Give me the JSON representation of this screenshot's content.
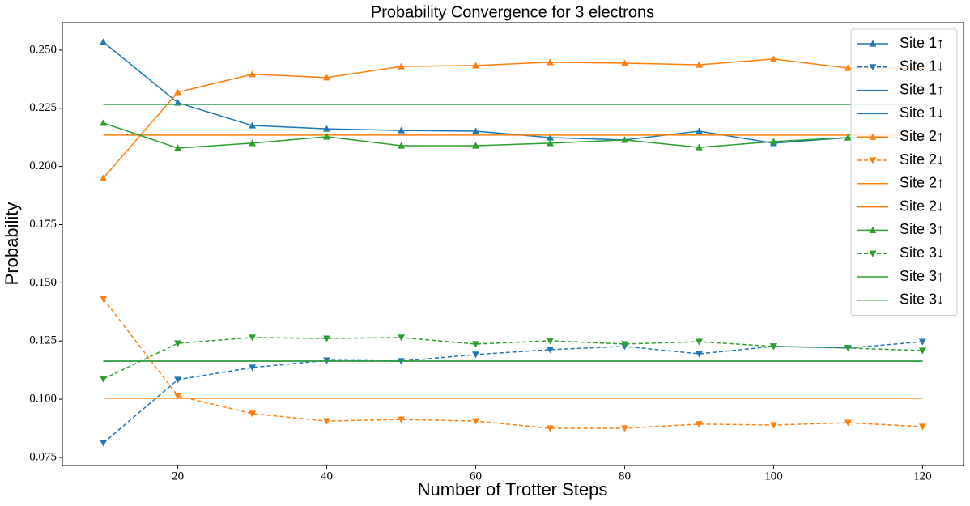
{
  "chart_data": {
    "type": "line",
    "title": "Probability Convergence for 3 electrons",
    "xlabel": "Number of Trotter Steps",
    "ylabel": "Probability",
    "x": [
      10,
      20,
      30,
      40,
      50,
      60,
      70,
      80,
      90,
      100,
      110,
      120
    ],
    "xlim": [
      4.5,
      125.5
    ],
    "ylim": [
      0.0715,
      0.2618
    ],
    "xticks": [
      20,
      40,
      60,
      80,
      100,
      120
    ],
    "yticks": [
      0.075,
      {
        "value": 0.1,
        "label": "0.100"
      },
      0.125,
      {
        "value": 0.15,
        "label": "0.150"
      },
      0.175,
      {
        "value": 0.2,
        "label": "0.200"
      },
      0.225,
      {
        "value": 0.25,
        "label": "0.250"
      }
    ],
    "legend": "upper right",
    "series": [
      {
        "name": "Site 1↑",
        "color": "#1f77b4",
        "marker": "^",
        "linestyle": "solid",
        "values": [
          0.2535,
          0.2274,
          0.2176,
          0.2162,
          0.2155,
          0.2152,
          0.2124,
          0.2114,
          0.2152,
          0.21,
          0.2124,
          0.2124
        ]
      },
      {
        "name": "Site 1↓",
        "color": "#1f77b4",
        "marker": "v",
        "linestyle": "dashed",
        "values": [
          0.0812,
          0.1084,
          0.1136,
          0.1167,
          0.1164,
          0.1192,
          0.1213,
          0.1227,
          0.1195,
          0.1227,
          0.122,
          0.1247
        ]
      },
      {
        "name": "Site 1↑",
        "color": "#1f77b4",
        "linestyle": "solid",
        "value": 0.2267
      },
      {
        "name": "Site 1↓",
        "color": "#1f77b4",
        "linestyle": "solid",
        "value": 0.1164
      },
      {
        "name": "Site 2↑",
        "color": "#ff7f0e",
        "marker": "^",
        "linestyle": "solid",
        "values": [
          0.195,
          0.2319,
          0.2396,
          0.2382,
          0.243,
          0.2434,
          0.2448,
          0.2444,
          0.2437,
          0.2462,
          0.2423,
          0.2423
        ]
      },
      {
        "name": "Site 2↓",
        "color": "#ff7f0e",
        "marker": "v",
        "linestyle": "dashed",
        "values": [
          0.1432,
          0.1014,
          0.0938,
          0.0906,
          0.0913,
          0.0906,
          0.0875,
          0.0875,
          0.0893,
          0.0889,
          0.0899,
          0.0882
        ]
      },
      {
        "name": "Site 2↑",
        "color": "#ff7f0e",
        "linestyle": "solid",
        "value": 0.2135
      },
      {
        "name": "Site 2↓",
        "color": "#ff7f0e",
        "linestyle": "solid",
        "value": 0.1004
      },
      {
        "name": "Site 3↑",
        "color": "#2ca02c",
        "marker": "^",
        "linestyle": "solid",
        "values": [
          0.2187,
          0.2079,
          0.21,
          0.2128,
          0.2089,
          0.2089,
          0.21,
          0.2114,
          0.2082,
          0.2107,
          0.2124,
          0.2124
        ]
      },
      {
        "name": "Site 3↓",
        "color": "#2ca02c",
        "marker": "v",
        "linestyle": "dashed",
        "values": [
          0.1087,
          0.124,
          0.1265,
          0.1261,
          0.1265,
          0.1237,
          0.1251,
          0.1237,
          0.1247,
          0.1227,
          0.122,
          0.1209
        ]
      },
      {
        "name": "Site 3↑",
        "color": "#2ca02c",
        "linestyle": "solid",
        "value": 0.2267
      },
      {
        "name": "Site 3↓",
        "color": "#2ca02c",
        "linestyle": "solid",
        "value": 0.1164
      }
    ]
  }
}
